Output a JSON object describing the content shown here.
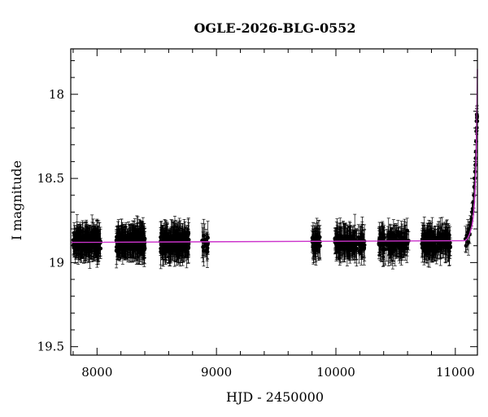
{
  "chart_data": {
    "type": "scatter",
    "title": "OGLE-2026-BLG-0552",
    "xlabel": "HJD - 2450000",
    "ylabel": "I magnitude",
    "xlim": [
      7780,
      11185
    ],
    "ylim": [
      19.55,
      17.73
    ],
    "y_inverted": true,
    "x_ticks": [
      8000,
      9000,
      10000,
      11000
    ],
    "x_tick_labels": [
      "8000",
      "9000",
      "10000",
      "11000"
    ],
    "y_ticks": [
      18,
      18.5,
      19,
      19.5
    ],
    "y_tick_labels": [
      "18",
      "18.5",
      "19",
      "19.5"
    ],
    "x_minor_step": 200,
    "y_minor_step": 0.1,
    "grid": false,
    "legend": "none",
    "baseline_mag": 18.88,
    "typical_error": 0.07,
    "observing_seasons": [
      {
        "start": 7800,
        "end": 8030,
        "n": 200
      },
      {
        "start": 8160,
        "end": 8400,
        "n": 220
      },
      {
        "start": 8530,
        "end": 8770,
        "n": 220
      },
      {
        "start": 8880,
        "end": 8930,
        "n": 18
      },
      {
        "start": 9800,
        "end": 9870,
        "n": 45
      },
      {
        "start": 9990,
        "end": 10240,
        "n": 140
      },
      {
        "start": 10360,
        "end": 10610,
        "n": 140
      },
      {
        "start": 10720,
        "end": 10960,
        "n": 150
      },
      {
        "start": 11080,
        "end": 11183,
        "n": 0
      }
    ],
    "event_points": [
      {
        "x": 11085,
        "y": 18.86
      },
      {
        "x": 11090,
        "y": 18.9
      },
      {
        "x": 11095,
        "y": 18.84
      },
      {
        "x": 11100,
        "y": 18.85
      },
      {
        "x": 11105,
        "y": 18.82
      },
      {
        "x": 11110,
        "y": 18.88
      },
      {
        "x": 11115,
        "y": 18.8
      },
      {
        "x": 11120,
        "y": 18.83
      },
      {
        "x": 11125,
        "y": 18.78
      },
      {
        "x": 11130,
        "y": 18.76
      },
      {
        "x": 11135,
        "y": 18.74
      },
      {
        "x": 11140,
        "y": 18.7
      },
      {
        "x": 11145,
        "y": 18.68
      },
      {
        "x": 11150,
        "y": 18.64
      },
      {
        "x": 11155,
        "y": 18.6
      },
      {
        "x": 11158,
        "y": 18.55
      },
      {
        "x": 11162,
        "y": 18.5
      },
      {
        "x": 11165,
        "y": 18.46
      },
      {
        "x": 11168,
        "y": 18.42
      },
      {
        "x": 11170,
        "y": 18.38
      },
      {
        "x": 11172,
        "y": 18.34
      },
      {
        "x": 11174,
        "y": 18.28
      },
      {
        "x": 11176,
        "y": 18.22
      },
      {
        "x": 11178,
        "y": 18.16
      },
      {
        "x": 11179,
        "y": 18.2
      },
      {
        "x": 11180,
        "y": 18.12
      },
      {
        "x": 11181,
        "y": 18.14
      },
      {
        "x": 11182,
        "y": 18.13
      },
      {
        "x": 11183,
        "y": 18.16
      }
    ],
    "model_curve": {
      "color": "#cc33cc",
      "x": [
        7780,
        11080,
        11100,
        11120,
        11140,
        11150,
        11160,
        11165,
        11170,
        11174,
        11177,
        11180,
        11182,
        11184,
        11185
      ],
      "y": [
        18.88,
        18.87,
        18.86,
        18.83,
        18.78,
        18.73,
        18.65,
        18.58,
        18.48,
        18.38,
        18.27,
        18.13,
        18.0,
        17.88,
        17.85
      ]
    }
  }
}
